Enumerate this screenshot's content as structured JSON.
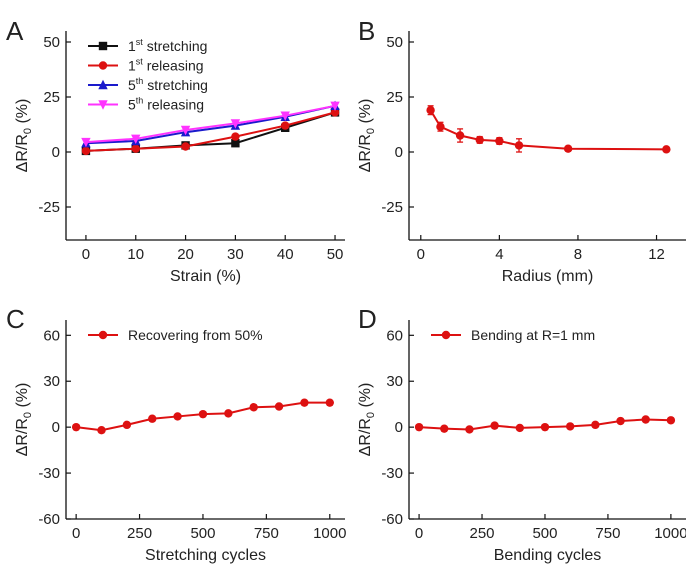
{
  "chart_data": [
    {
      "panel": "A",
      "type": "line",
      "xlabel": "Strain (%)",
      "ylabel": "ΔR/R₀ (%)",
      "xlim": [
        -4,
        52
      ],
      "ylim": [
        -40,
        55
      ],
      "xticks": [
        0,
        10,
        20,
        30,
        40,
        50
      ],
      "yticks": [
        -25,
        0,
        25,
        50
      ],
      "legend": "top-left",
      "x": [
        0,
        10,
        20,
        30,
        40,
        50
      ],
      "series": [
        {
          "name_prefix": "1",
          "name_sup": "st",
          "name_suffix": " stretching",
          "color": "#111111",
          "marker": "square",
          "values": [
            0.5,
            1.5,
            3,
            4,
            11,
            18
          ]
        },
        {
          "name_prefix": "1",
          "name_sup": "st",
          "name_suffix": " releasing",
          "color": "#dd1111",
          "marker": "circle",
          "values": [
            0.5,
            1.5,
            2.5,
            7,
            12,
            18
          ]
        },
        {
          "name_prefix": "5",
          "name_sup": "th",
          "name_suffix": " stretching",
          "color": "#1a1acc",
          "marker": "triangle",
          "values": [
            4,
            5,
            9,
            12,
            16,
            21
          ]
        },
        {
          "name_prefix": "5",
          "name_sup": "th",
          "name_suffix": " releasing",
          "color": "#ff33ff",
          "marker": "triangle-down",
          "values": [
            4.5,
            6,
            10,
            13,
            16.5,
            21
          ]
        }
      ]
    },
    {
      "panel": "B",
      "type": "line",
      "xlabel": "Radius (mm)",
      "ylabel": "ΔR/R₀ (%)",
      "xlim": [
        -0.6,
        13.5
      ],
      "ylim": [
        -40,
        55
      ],
      "xticks": [
        0,
        4,
        8,
        12
      ],
      "yticks": [
        -25,
        0,
        25,
        50
      ],
      "x": [
        0.5,
        1,
        2,
        3,
        4,
        5,
        7.5,
        12.5
      ],
      "series": [
        {
          "color": "#dd1111",
          "marker": "circle",
          "values": [
            19,
            11.5,
            7.5,
            5.5,
            5,
            3,
            1.5,
            1.2
          ],
          "errors": [
            2,
            2,
            3,
            1.5,
            1.5,
            3,
            1,
            0.5
          ]
        }
      ]
    },
    {
      "panel": "C",
      "type": "line",
      "xlabel": "Stretching cycles",
      "ylabel": "ΔR/R₀ (%)",
      "xlim": [
        -40,
        1060
      ],
      "ylim": [
        -60,
        70
      ],
      "xticks": [
        0,
        250,
        500,
        750,
        1000
      ],
      "yticks": [
        -60,
        -30,
        0,
        30,
        60
      ],
      "legend": "top-left",
      "x": [
        0,
        100,
        200,
        300,
        400,
        500,
        600,
        700,
        800,
        900,
        1000
      ],
      "series": [
        {
          "name": "Recovering from 50%",
          "color": "#dd1111",
          "marker": "circle",
          "values": [
            0,
            -2,
            1.5,
            5.5,
            7,
            8.5,
            9,
            13,
            13.5,
            16,
            16
          ]
        }
      ]
    },
    {
      "panel": "D",
      "type": "line",
      "xlabel": "Bending cycles",
      "ylabel": "ΔR/R₀ (%)",
      "xlim": [
        -40,
        1060
      ],
      "ylim": [
        -60,
        70
      ],
      "xticks": [
        0,
        250,
        500,
        750,
        1000
      ],
      "yticks": [
        -60,
        -30,
        0,
        30,
        60
      ],
      "legend": "top-left",
      "x": [
        0,
        100,
        200,
        300,
        400,
        500,
        600,
        700,
        800,
        900,
        1000
      ],
      "series": [
        {
          "name": "Bending at R=1 mm",
          "color": "#dd1111",
          "marker": "circle",
          "values": [
            0,
            -1,
            -1.5,
            1,
            -0.5,
            0,
            0.5,
            1.5,
            4,
            5,
            4.5
          ]
        }
      ]
    }
  ]
}
